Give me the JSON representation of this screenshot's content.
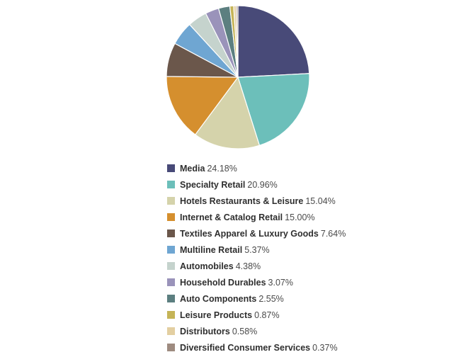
{
  "chart_data": {
    "type": "pie",
    "title": "",
    "start_angle_deg": 0,
    "direction": "clockwise",
    "legend_position": "bottom",
    "slices": [
      {
        "label": "Media",
        "value": 24.18,
        "value_text": "24.18%",
        "color": "#484a78"
      },
      {
        "label": "Specialty Retail",
        "value": 20.96,
        "value_text": "20.96%",
        "color": "#6cbfba"
      },
      {
        "label": "Hotels Restaurants & Leisure",
        "value": 15.04,
        "value_text": "15.04%",
        "color": "#d5d3ab"
      },
      {
        "label": "Internet & Catalog Retail",
        "value": 15.0,
        "value_text": "15.00%",
        "color": "#d58f2e"
      },
      {
        "label": "Textiles Apparel & Luxury Goods",
        "value": 7.64,
        "value_text": "7.64%",
        "color": "#6b574b"
      },
      {
        "label": "Multiline Retail",
        "value": 5.37,
        "value_text": "5.37%",
        "color": "#6fa6d2"
      },
      {
        "label": "Automobiles",
        "value": 4.38,
        "value_text": "4.38%",
        "color": "#c5d3cd"
      },
      {
        "label": "Household Durables",
        "value": 3.07,
        "value_text": "3.07%",
        "color": "#9a93ba"
      },
      {
        "label": "Auto Components",
        "value": 2.55,
        "value_text": "2.55%",
        "color": "#5c7f80"
      },
      {
        "label": "Leisure Products",
        "value": 0.87,
        "value_text": "0.87%",
        "color": "#c5b457"
      },
      {
        "label": "Distributors",
        "value": 0.58,
        "value_text": "0.58%",
        "color": "#e3cfa1"
      },
      {
        "label": "Diversified Consumer Services",
        "value": 0.37,
        "value_text": "0.37%",
        "color": "#9e8b80"
      }
    ]
  }
}
